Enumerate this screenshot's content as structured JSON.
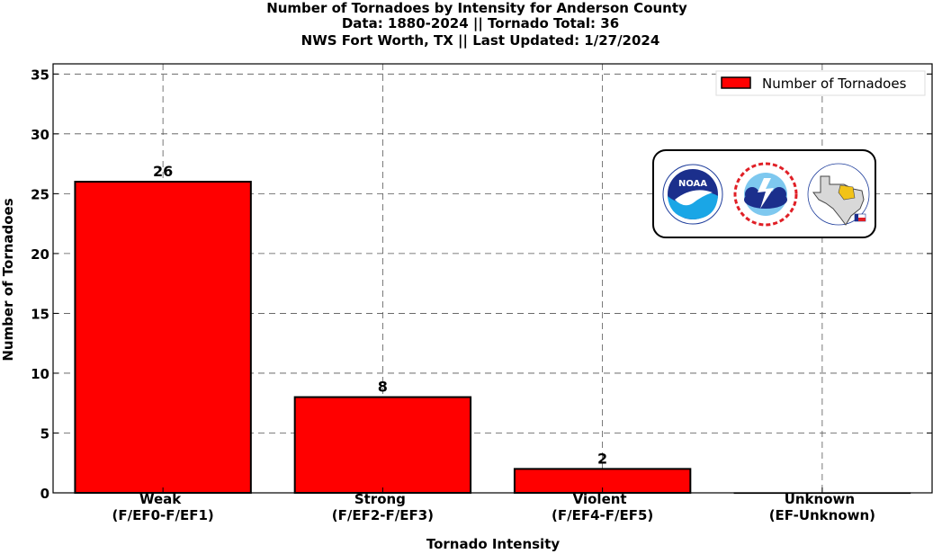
{
  "title_lines": [
    "Number of Tornadoes by Intensity for Anderson County",
    "Data: 1880-2024 || Tornado Total: 36",
    "NWS Fort Worth, TX || Last Updated: 1/27/2024"
  ],
  "chart_data": {
    "type": "bar",
    "categories": [
      [
        "Weak",
        "(F/EF0-F/EF1)"
      ],
      [
        "Strong",
        "(F/EF2-F/EF3)"
      ],
      [
        "Violent",
        "(F/EF4-F/EF5)"
      ],
      [
        "Unknown",
        "(EF-Unknown)"
      ]
    ],
    "series": [
      {
        "name": "Number of Tornadoes",
        "values": [
          26,
          8,
          2,
          0
        ],
        "color": "#ff0000"
      }
    ],
    "data_labels": [
      "26",
      "8",
      "2",
      ""
    ],
    "xlabel": "Tornado Intensity",
    "ylabel": "Number of Tornadoes",
    "ylim": [
      0,
      35
    ],
    "yticks": [
      0,
      5,
      10,
      15,
      20,
      25,
      30,
      35
    ],
    "grid": true,
    "grid_style": "dashed",
    "legend_position": "top-right"
  },
  "logos": {
    "noaa": {
      "text": "NOAA",
      "icon": "noaa-logo-icon"
    },
    "nws": {
      "icon": "nws-logo-icon"
    },
    "texas": {
      "icon": "texas-map-logo-icon"
    }
  }
}
